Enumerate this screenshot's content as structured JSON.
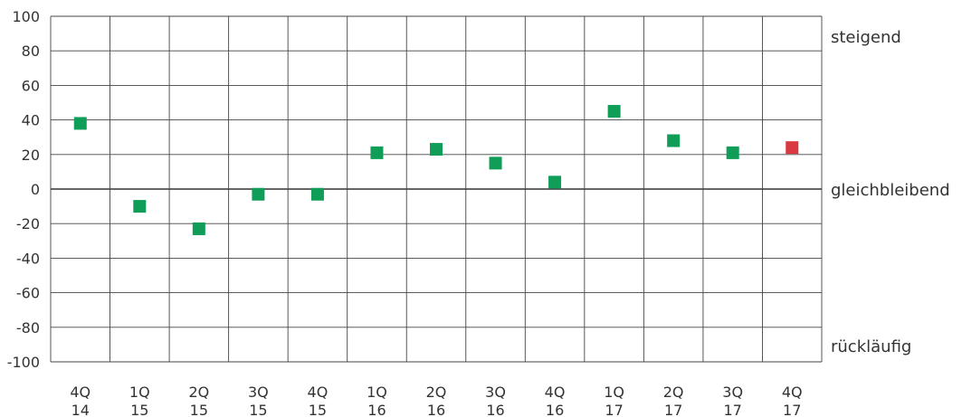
{
  "chart_data": {
    "type": "scatter",
    "title": "",
    "xlabel": "",
    "ylabel": "",
    "ylim": [
      -100,
      100
    ],
    "y_ticks": [
      100,
      80,
      60,
      40,
      20,
      0,
      -20,
      -40,
      -60,
      -80,
      -100
    ],
    "grid": true,
    "categories": [
      {
        "q": "4Q",
        "y": "14"
      },
      {
        "q": "1Q",
        "y": "15"
      },
      {
        "q": "2Q",
        "y": "15"
      },
      {
        "q": "3Q",
        "y": "15"
      },
      {
        "q": "4Q",
        "y": "15"
      },
      {
        "q": "1Q",
        "y": "16"
      },
      {
        "q": "2Q",
        "y": "16"
      },
      {
        "q": "3Q",
        "y": "16"
      },
      {
        "q": "4Q",
        "y": "16"
      },
      {
        "q": "1Q",
        "y": "17"
      },
      {
        "q": "2Q",
        "y": "17"
      },
      {
        "q": "3Q",
        "y": "17"
      },
      {
        "q": "4Q",
        "y": "17"
      }
    ],
    "values": [
      38,
      -10,
      -23,
      -3,
      -3,
      21,
      23,
      15,
      4,
      45,
      28,
      21,
      24
    ],
    "point_colors": [
      "#0f9d58",
      "#0f9d58",
      "#0f9d58",
      "#0f9d58",
      "#0f9d58",
      "#0f9d58",
      "#0f9d58",
      "#0f9d58",
      "#0f9d58",
      "#0f9d58",
      "#0f9d58",
      "#0f9d58",
      "#d93a3f"
    ],
    "right_labels": {
      "top": "steigend",
      "middle": "gleichbleibend",
      "bottom": "rückläufig"
    }
  }
}
